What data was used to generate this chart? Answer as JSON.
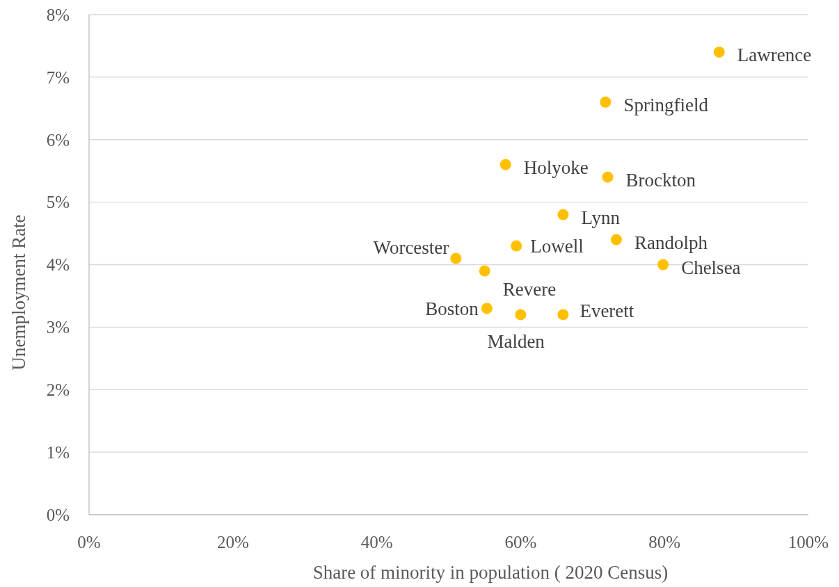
{
  "chart_data": {
    "type": "scatter",
    "xlabel": "Share of minority in population ( 2020 Census)",
    "ylabel": "Unemployment Rate",
    "x": [
      87.6,
      71.8,
      57.9,
      72.1,
      65.9,
      59.4,
      73.3,
      51.0,
      55.0,
      79.8,
      55.3,
      60.0,
      65.9
    ],
    "values": [
      7.4,
      6.6,
      5.6,
      5.4,
      4.8,
      4.3,
      4.4,
      4.1,
      3.9,
      4.0,
      3.3,
      3.2,
      3.2
    ],
    "color": "#ffc000",
    "marker": "circle",
    "grid": "y",
    "xlim": [
      0,
      100
    ],
    "xticks": [
      {
        "value": 0,
        "label": "0%"
      },
      {
        "value": 20,
        "label": "20%"
      },
      {
        "value": 40,
        "label": "40%"
      },
      {
        "value": 60,
        "label": "60%"
      },
      {
        "value": 80,
        "label": "80%"
      },
      {
        "value": 100,
        "label": "100%"
      }
    ],
    "ylim": [
      0,
      8
    ],
    "yticks": [
      {
        "value": 0,
        "label": "0%"
      },
      {
        "value": 1,
        "label": "1%"
      },
      {
        "value": 2,
        "label": "2%"
      },
      {
        "value": 3,
        "label": "3%"
      },
      {
        "value": 4,
        "label": "4%"
      },
      {
        "value": 5,
        "label": "5%"
      },
      {
        "value": 6,
        "label": "6%"
      },
      {
        "value": 7,
        "label": "7%"
      },
      {
        "value": 8,
        "label": "8%"
      }
    ],
    "annotations": [
      {
        "text": "Lawrence",
        "x": 87.6,
        "y": 7.4
      },
      {
        "text": "Springfield",
        "x": 71.8,
        "y": 6.6
      },
      {
        "text": "Holyoke",
        "x": 57.9,
        "y": 5.6
      },
      {
        "text": "Brockton",
        "x": 72.1,
        "y": 5.4
      },
      {
        "text": "Lynn",
        "x": 65.9,
        "y": 4.8
      },
      {
        "text": "Lowell",
        "x": 59.4,
        "y": 4.3
      },
      {
        "text": "Randolph",
        "x": 73.3,
        "y": 4.4
      },
      {
        "text": "Worcester",
        "x": 51.0,
        "y": 4.1
      },
      {
        "text": "Revere",
        "x": 55.0,
        "y": 3.9
      },
      {
        "text": "Chelsea",
        "x": 79.8,
        "y": 4.0
      },
      {
        "text": "Boston",
        "x": 55.3,
        "y": 3.3
      },
      {
        "text": "Malden",
        "x": 60.0,
        "y": 3.2
      },
      {
        "text": "Everett",
        "x": 65.9,
        "y": 3.2
      }
    ]
  }
}
